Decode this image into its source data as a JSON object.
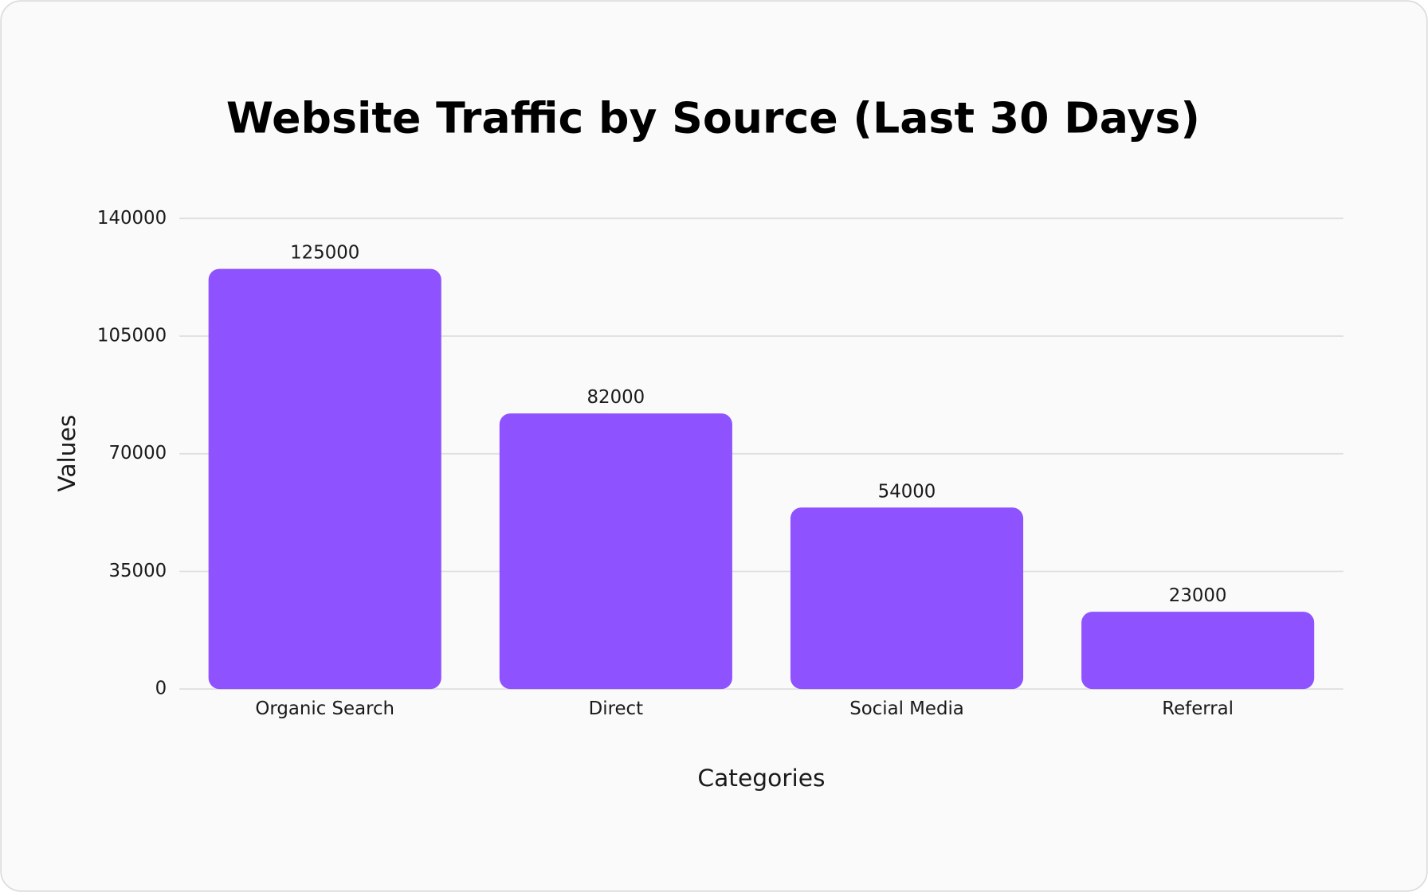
{
  "chart_data": {
    "type": "bar",
    "title": "Website Traffic by Source (Last 30 Days)",
    "x_label": "Categories",
    "y_label": "Values",
    "categories": [
      "Organic Search",
      "Direct",
      "Social Media",
      "Referral"
    ],
    "values": [
      125000,
      82000,
      54000,
      23000
    ],
    "color": "#8f52ff",
    "ylim": [
      0,
      140000
    ],
    "yticks": [
      0,
      35000,
      70000,
      105000,
      140000
    ],
    "grid": true
  }
}
